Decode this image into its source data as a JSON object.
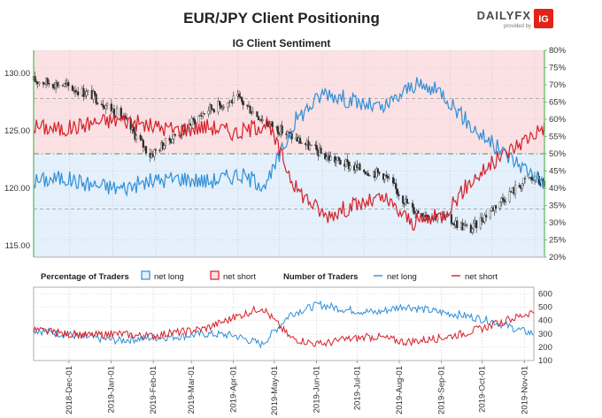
{
  "title": "EUR/JPY Client Positioning",
  "subtitle": "IG Client Sentiment",
  "logo": {
    "brand": "DAILYFX",
    "tagline": "provided by",
    "badge": "IG"
  },
  "colors": {
    "net_long": "#2f8fd8",
    "net_short": "#d6202a",
    "candle": "#2b2b2b",
    "bg_short": "#fbe1e3",
    "bg_long": "#e4f0fb",
    "axis_accent": "#5bb45b"
  },
  "legend": {
    "pct_label": "Percentage of Traders",
    "pct_long": "net long",
    "pct_short": "net short",
    "num_label": "Number of Traders",
    "num_long": "net long",
    "num_short": "net short"
  },
  "chart_data": [
    {
      "type": "candlestick",
      "title": "IG Client Sentiment",
      "series_name": "EUR/JPY",
      "ylim": [
        114,
        132
      ],
      "yticks": [
        "115.00",
        "120.00",
        "125.00",
        "130.00"
      ],
      "y2lim": [
        20,
        80
      ],
      "y2ticks": [
        "20%",
        "25%",
        "30%",
        "35%",
        "40%",
        "45%",
        "50%",
        "55%",
        "60%",
        "65%",
        "70%",
        "75%",
        "80%"
      ],
      "x_dates": [
        "2018-11-05",
        "2018-11-26",
        "2018-12-17",
        "2019-01-07",
        "2019-01-28",
        "2019-02-18",
        "2019-03-11",
        "2019-04-01",
        "2019-04-22",
        "2019-05-13",
        "2019-06-03",
        "2019-06-24",
        "2019-07-15",
        "2019-08-05",
        "2019-08-26",
        "2019-09-16",
        "2019-10-07",
        "2019-10-28",
        "2019-11-08"
      ],
      "price": [
        129.4,
        129.0,
        128.1,
        126.3,
        122.9,
        124.9,
        126.9,
        127.8,
        125.7,
        124.3,
        122.8,
        121.8,
        121.2,
        118.1,
        117.5,
        116.4,
        118.9,
        120.9,
        120.4
      ],
      "net_long_pct": [
        42,
        43,
        41,
        40,
        42,
        43,
        42,
        44,
        41,
        60,
        68,
        65,
        63,
        70,
        68,
        58,
        51,
        45,
        42
      ],
      "net_short_pct": [
        58,
        57,
        59,
        60,
        58,
        57,
        58,
        56,
        59,
        40,
        32,
        35,
        37,
        30,
        32,
        42,
        49,
        55,
        58
      ],
      "reference_lines": {
        "price": 123.0,
        "pct_50": 50,
        "pct_66": 66,
        "pct_34": 34
      }
    },
    {
      "type": "line",
      "title": "Number of Traders",
      "ylim": [
        100,
        650
      ],
      "yticks": [
        "100",
        "200",
        "300",
        "400",
        "500",
        "600"
      ],
      "x_labels": [
        "2018-Dec-01",
        "2019-Jan-01",
        "2019-Feb-01",
        "2019-Mar-01",
        "2019-Apr-01",
        "2019-May-01",
        "2019-Jun-01",
        "2019-Jul-01",
        "2019-Aug-01",
        "2019-Sep-01",
        "2019-Oct-01",
        "2019-Nov-01"
      ],
      "x_dates": [
        "2018-11-05",
        "2018-11-26",
        "2018-12-17",
        "2019-01-07",
        "2019-01-28",
        "2019-02-18",
        "2019-03-11",
        "2019-04-01",
        "2019-04-22",
        "2019-05-13",
        "2019-06-03",
        "2019-06-24",
        "2019-07-15",
        "2019-08-05",
        "2019-08-26",
        "2019-09-16",
        "2019-10-07",
        "2019-10-28",
        "2019-11-08"
      ],
      "series": [
        {
          "name": "net long",
          "values": [
            330,
            300,
            270,
            250,
            270,
            280,
            300,
            290,
            220,
            450,
            520,
            480,
            460,
            510,
            470,
            440,
            400,
            330,
            300
          ]
        },
        {
          "name": "net short",
          "values": [
            330,
            300,
            290,
            300,
            280,
            310,
            340,
            420,
            500,
            270,
            220,
            260,
            280,
            240,
            260,
            300,
            360,
            430,
            470
          ]
        }
      ]
    }
  ]
}
